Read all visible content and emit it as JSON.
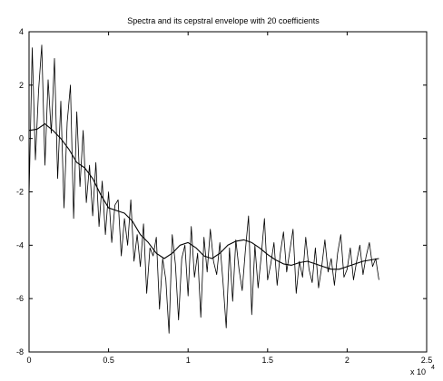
{
  "chart_data": {
    "type": "line",
    "title": "Spectra and its cepstral envelope with 20 coefficients",
    "xlabel": "",
    "ylabel": "",
    "xlim": [
      0,
      2.5
    ],
    "ylim": [
      -8,
      4
    ],
    "x_ticks": [
      0,
      0.5,
      1,
      1.5,
      2,
      2.5
    ],
    "x_tick_labels": [
      "0",
      "0.5",
      "1",
      "1.5",
      "2",
      "2.5"
    ],
    "y_ticks": [
      -8,
      -6,
      -4,
      -2,
      0,
      2,
      4
    ],
    "y_tick_labels": [
      "-8",
      "-6",
      "-4",
      "-2",
      "0",
      "2",
      "4"
    ],
    "x_multiplier_label": "x 10",
    "x_multiplier_exponent": "4",
    "grid": false,
    "legend": "none",
    "colors": {
      "line": "#000000",
      "background": "#ffffff",
      "axes": "#000000"
    },
    "series": [
      {
        "x": [
          0.0,
          0.02,
          0.04,
          0.06,
          0.08,
          0.1,
          0.12,
          0.14,
          0.16,
          0.18,
          0.2,
          0.22,
          0.24,
          0.26,
          0.28,
          0.3,
          0.32,
          0.34,
          0.36,
          0.38,
          0.4,
          0.42,
          0.44,
          0.46,
          0.48,
          0.5,
          0.52,
          0.54,
          0.56,
          0.58,
          0.6,
          0.62,
          0.64,
          0.66,
          0.68,
          0.7,
          0.72,
          0.74,
          0.76,
          0.78,
          0.8,
          0.82,
          0.84,
          0.86,
          0.88,
          0.9,
          0.92,
          0.94,
          0.96,
          0.98,
          1.0,
          1.02,
          1.04,
          1.06,
          1.08,
          1.1,
          1.12,
          1.14,
          1.16,
          1.18,
          1.2,
          1.22,
          1.24,
          1.26,
          1.28,
          1.3,
          1.32,
          1.34,
          1.36,
          1.38,
          1.4,
          1.42,
          1.44,
          1.46,
          1.48,
          1.5,
          1.52,
          1.54,
          1.56,
          1.58,
          1.6,
          1.62,
          1.64,
          1.66,
          1.68,
          1.7,
          1.72,
          1.74,
          1.76,
          1.78,
          1.8,
          1.82,
          1.84,
          1.86,
          1.88,
          1.9,
          1.92,
          1.94,
          1.96,
          1.98,
          2.0,
          2.02,
          2.04,
          2.06,
          2.08,
          2.1,
          2.12,
          2.14,
          2.16,
          2.18,
          2.2
        ],
        "y": [
          -2.2,
          3.4,
          -0.8,
          1.8,
          3.5,
          -1.0,
          2.2,
          0.2,
          3.0,
          -1.5,
          1.4,
          -2.6,
          0.6,
          2.0,
          -3.0,
          1.0,
          -1.8,
          0.3,
          -2.4,
          -1.0,
          -2.9,
          -0.9,
          -3.3,
          -1.6,
          -3.6,
          -2.0,
          -3.9,
          -2.5,
          -2.3,
          -4.4,
          -3.0,
          -4.0,
          -2.3,
          -4.6,
          -3.6,
          -4.8,
          -3.2,
          -5.8,
          -4.1,
          -4.4,
          -3.7,
          -6.4,
          -4.5,
          -5.3,
          -7.3,
          -3.6,
          -4.7,
          -6.8,
          -4.5,
          -4.0,
          -5.9,
          -3.3,
          -5.2,
          -4.3,
          -6.7,
          -3.7,
          -5.0,
          -3.4,
          -4.6,
          -5.1,
          -3.9,
          -5.4,
          -7.1,
          -4.1,
          -6.1,
          -3.8,
          -4.9,
          -5.7,
          -4.2,
          -2.9,
          -6.6,
          -4.0,
          -5.6,
          -4.4,
          -3.0,
          -5.3,
          -4.7,
          -3.9,
          -5.5,
          -4.3,
          -3.5,
          -5.0,
          -4.2,
          -3.4,
          -5.8,
          -4.6,
          -5.2,
          -3.7,
          -4.9,
          -5.4,
          -4.1,
          -5.6,
          -4.8,
          -3.8,
          -5.0,
          -4.5,
          -5.5,
          -4.3,
          -3.6,
          -5.2,
          -4.9,
          -4.1,
          -5.3,
          -4.6,
          -4.0,
          -5.1,
          -4.4,
          -3.9,
          -4.8,
          -4.5,
          -5.3
        ],
        "style": "jagged"
      },
      {
        "x": [
          0.0,
          0.05,
          0.1,
          0.15,
          0.2,
          0.25,
          0.3,
          0.35,
          0.4,
          0.45,
          0.5,
          0.55,
          0.6,
          0.65,
          0.7,
          0.75,
          0.8,
          0.85,
          0.9,
          0.95,
          1.0,
          1.05,
          1.1,
          1.15,
          1.2,
          1.25,
          1.3,
          1.35,
          1.4,
          1.45,
          1.5,
          1.55,
          1.6,
          1.65,
          1.7,
          1.75,
          1.8,
          1.85,
          1.9,
          1.95,
          2.0,
          2.05,
          2.1,
          2.15,
          2.2
        ],
        "y": [
          0.3,
          0.35,
          0.55,
          0.3,
          0.0,
          -0.4,
          -0.9,
          -1.1,
          -1.5,
          -2.1,
          -2.6,
          -2.7,
          -2.8,
          -3.1,
          -3.6,
          -3.9,
          -4.3,
          -4.5,
          -4.3,
          -4.0,
          -3.9,
          -4.1,
          -4.4,
          -4.5,
          -4.3,
          -4.0,
          -3.85,
          -3.8,
          -3.9,
          -4.1,
          -4.35,
          -4.55,
          -4.7,
          -4.75,
          -4.65,
          -4.6,
          -4.7,
          -4.8,
          -4.9,
          -4.9,
          -4.8,
          -4.7,
          -4.6,
          -4.55,
          -4.5
        ],
        "style": "smooth"
      }
    ]
  }
}
